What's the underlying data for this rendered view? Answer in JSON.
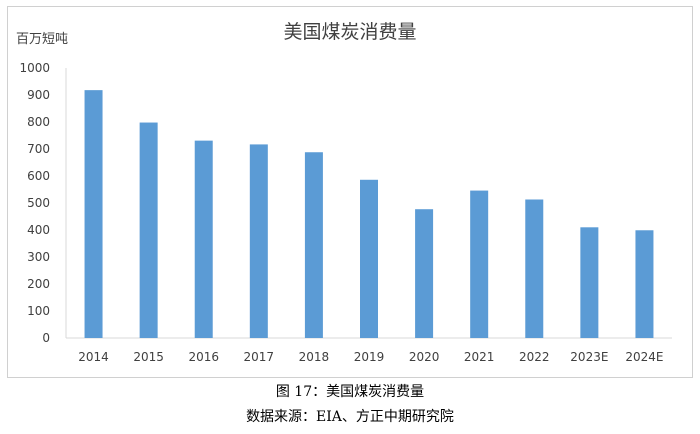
{
  "chart_data": {
    "type": "bar",
    "title": "美国煤炭消费量",
    "unit_label": "百万短吨",
    "categories": [
      "2014",
      "2015",
      "2016",
      "2017",
      "2018",
      "2019",
      "2020",
      "2021",
      "2022",
      "2023E",
      "2024E"
    ],
    "values": [
      918,
      798,
      731,
      717,
      688,
      586,
      477,
      546,
      513,
      410,
      399
    ],
    "ylim": [
      0,
      1000
    ],
    "yticks": [
      0,
      100,
      200,
      300,
      400,
      500,
      600,
      700,
      800,
      900,
      1000
    ],
    "bar_color": "#5b9bd5",
    "grid": false,
    "legend": "none"
  },
  "caption": {
    "figure_label": "图 17：美国煤炭消费量",
    "source": "数据来源：EIA、方正中期研究院"
  }
}
